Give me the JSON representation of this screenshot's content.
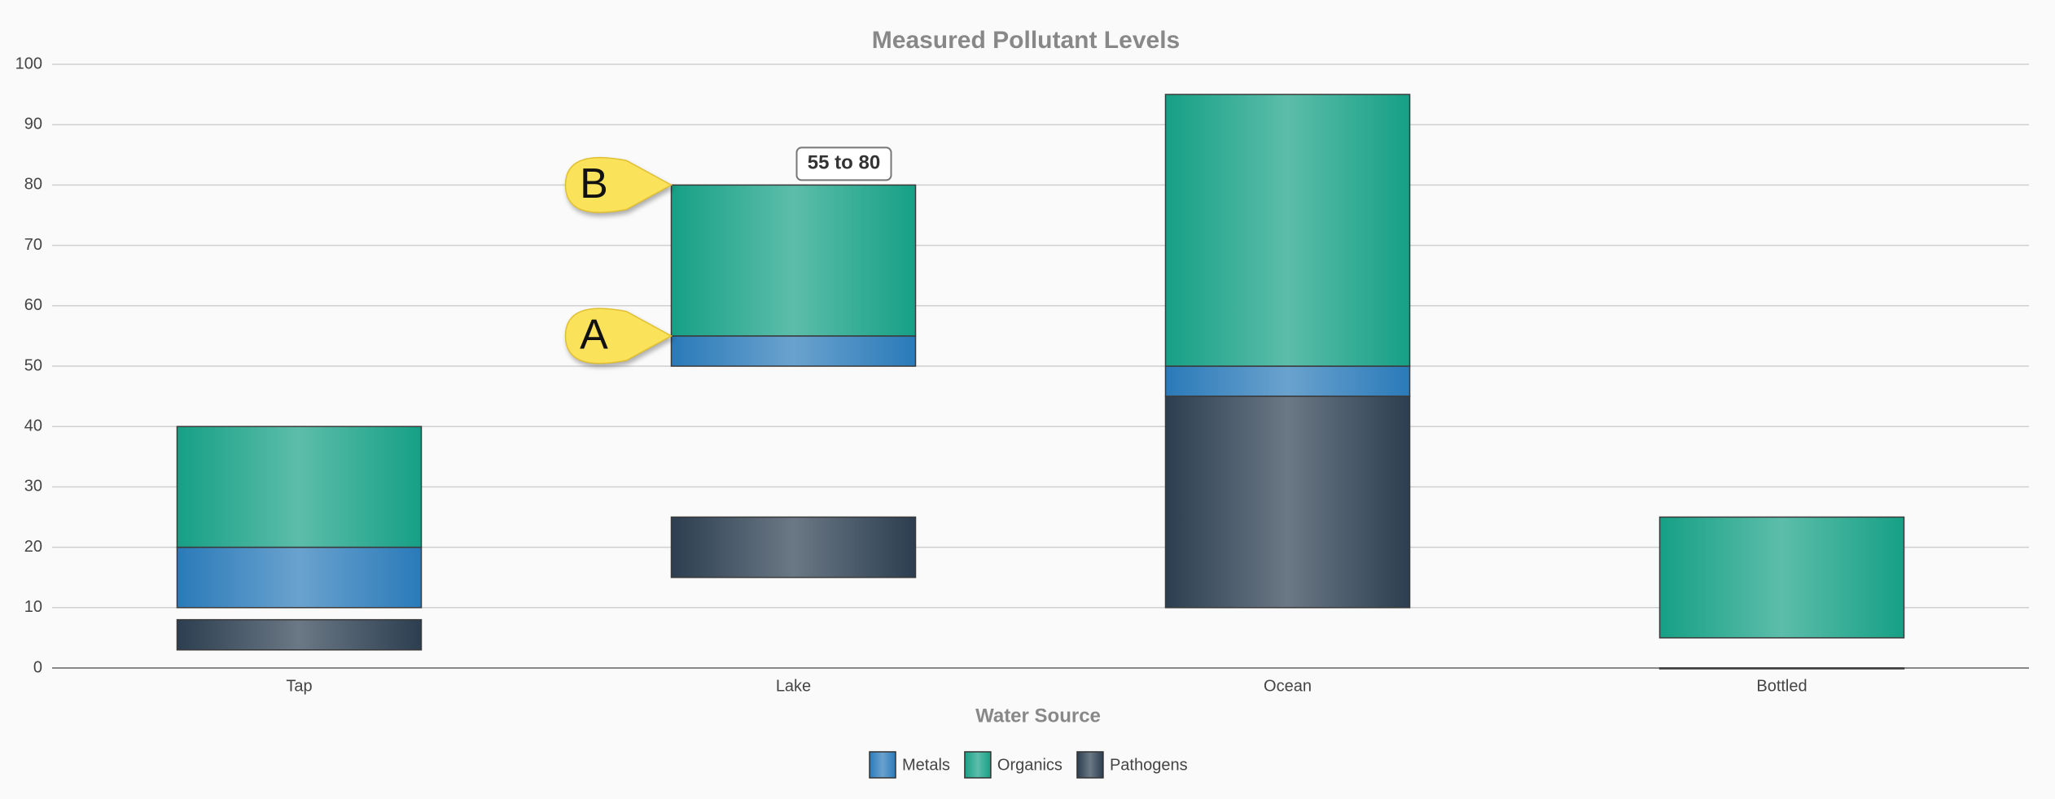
{
  "chart_data": {
    "type": "floating-bar",
    "title": "Measured Pollutant Levels",
    "x_label": "Water Source",
    "categories": [
      "Tap",
      "Lake",
      "Ocean",
      "Bottled"
    ],
    "series": [
      {
        "name": "Metals",
        "color": "#2a7ab9",
        "low": [
          10,
          50,
          45,
          null
        ],
        "high": [
          20,
          55,
          50,
          null
        ]
      },
      {
        "name": "Organics",
        "color": "#16a085",
        "low": [
          20,
          55,
          50,
          5
        ],
        "high": [
          40,
          80,
          95,
          25
        ]
      },
      {
        "name": "Pathogens",
        "color": "#2c3e50",
        "low": [
          3,
          15,
          10,
          0
        ],
        "high": [
          8,
          25,
          45,
          0
        ]
      }
    ],
    "ylim": [
      0,
      100
    ],
    "yticks": [
      0,
      10,
      20,
      30,
      40,
      50,
      60,
      70,
      80,
      90,
      100
    ],
    "grid": true,
    "tooltip": "55 to 80",
    "callouts": [
      "B",
      "A"
    ]
  }
}
